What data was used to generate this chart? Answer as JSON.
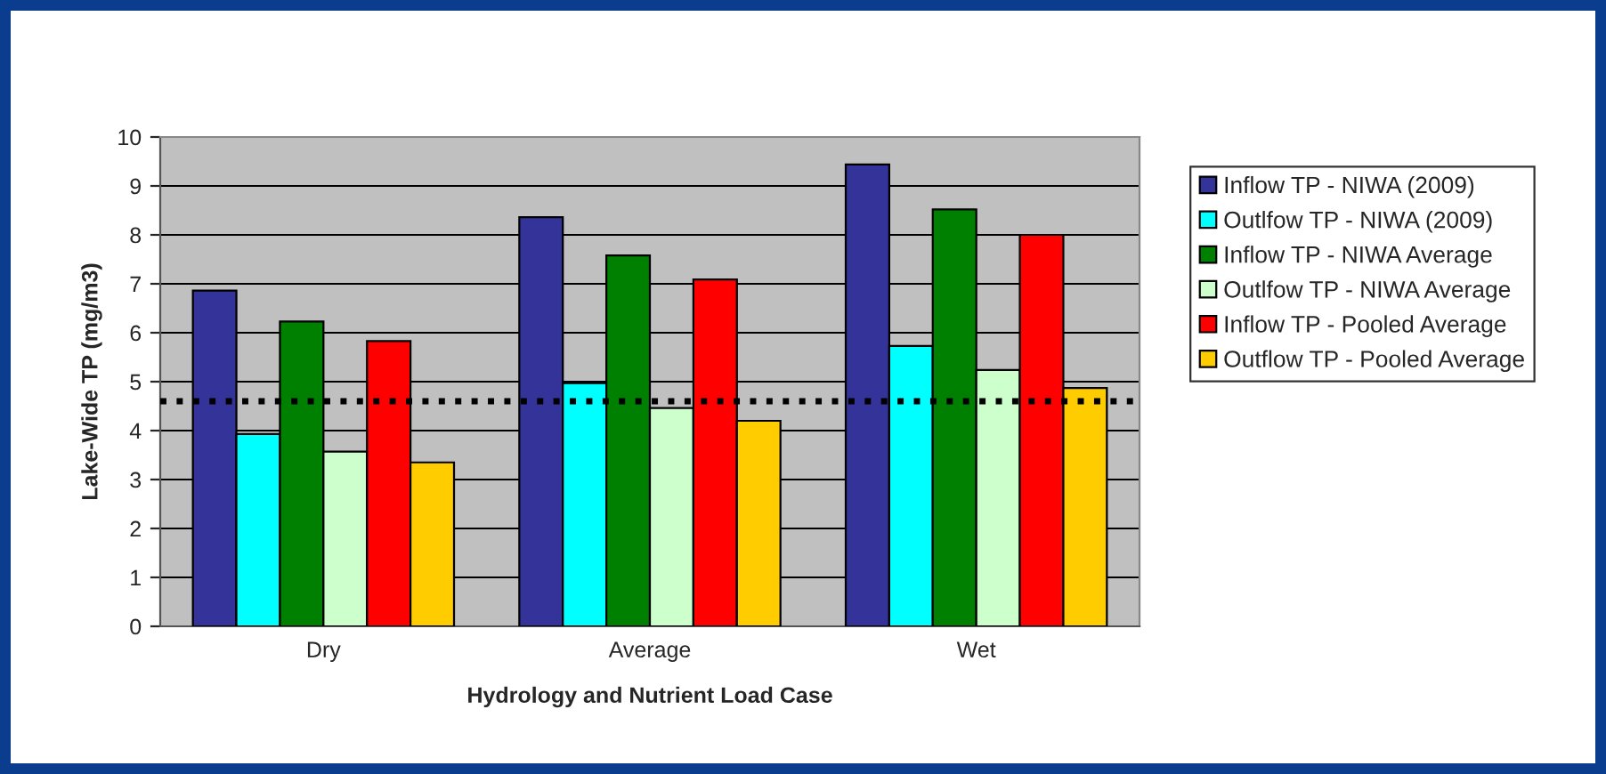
{
  "chart_data": {
    "type": "bar",
    "xlabel": "Hydrology and Nutrient Load Case",
    "ylabel": "Lake-Wide TP (mg/m3)",
    "categories": [
      "Dry",
      "Average",
      "Wet"
    ],
    "series": [
      {
        "name": "Inflow TP - NIWA (2009)",
        "color": "#333399",
        "values": [
          6.86,
          8.36,
          9.44
        ]
      },
      {
        "name": "Outlfow TP - NIWA (2009)",
        "color": "#00ffff",
        "values": [
          3.93,
          4.97,
          5.73
        ]
      },
      {
        "name": "Inflow TP - NIWA Average",
        "color": "#008000",
        "values": [
          6.23,
          7.58,
          8.52
        ]
      },
      {
        "name": "Outlfow TP - NIWA Average",
        "color": "#ccffcc",
        "values": [
          3.57,
          4.46,
          5.24
        ]
      },
      {
        "name": "Inflow TP - Pooled Average",
        "color": "#ff0000",
        "values": [
          5.83,
          7.09,
          8.0
        ]
      },
      {
        "name": "Outflow TP - Pooled Average",
        "color": "#ffcc00",
        "values": [
          3.35,
          4.2,
          4.87
        ]
      }
    ],
    "ylim": [
      0,
      10
    ],
    "yticks": [
      0,
      1,
      2,
      3,
      4,
      5,
      6,
      7,
      8,
      9,
      10
    ],
    "ref_lines": [
      {
        "axis": "y",
        "value": 4.6,
        "color": "#000000",
        "line_style": "dotted"
      }
    ],
    "grid": "y",
    "legend": "right"
  }
}
